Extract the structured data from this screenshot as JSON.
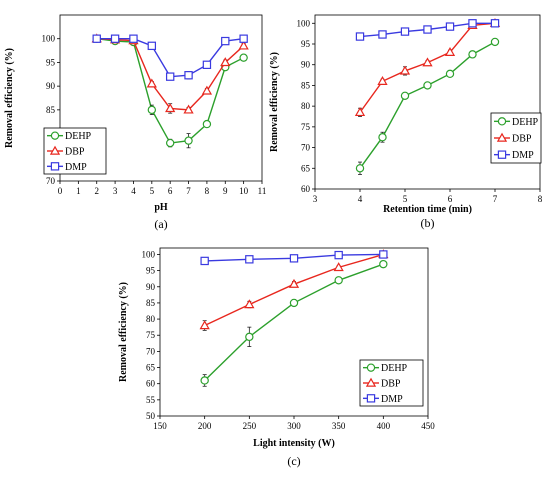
{
  "chart_data": [
    {
      "type": "line",
      "panel_label": "(a)",
      "xlabel": "pH",
      "ylabel": "Removal efficiency (%)",
      "xlim": [
        0,
        11
      ],
      "ylim": [
        70,
        105
      ],
      "xticks": [
        0,
        1,
        2,
        3,
        4,
        5,
        6,
        7,
        8,
        9,
        10,
        11
      ],
      "yticks": [
        70,
        75,
        80,
        85,
        90,
        95,
        100
      ],
      "grid": false,
      "legend_position": "bottom-left",
      "series": [
        {
          "name": "DEHP",
          "color": "#2ca02c",
          "marker": "circle",
          "x": [
            2,
            3,
            4,
            5,
            6,
            7,
            8,
            9,
            10
          ],
          "y": [
            100,
            99.5,
            99.3,
            85,
            78,
            78.5,
            82,
            94,
            96
          ],
          "err": [
            0,
            0,
            0,
            1,
            0.8,
            1.5,
            0.5,
            0.5,
            0.5
          ]
        },
        {
          "name": "DBP",
          "color": "#e8271e",
          "marker": "triangle",
          "x": [
            2,
            3,
            4,
            5,
            6,
            7,
            8,
            9,
            10
          ],
          "y": [
            100,
            99.8,
            99.6,
            90.5,
            85.3,
            85,
            89,
            95,
            98.5
          ],
          "err": [
            0,
            0,
            0,
            0.5,
            1,
            0.5,
            0.5,
            0.5,
            0.5
          ]
        },
        {
          "name": "DMP",
          "color": "#3a3ae0",
          "marker": "square",
          "x": [
            2,
            3,
            4,
            5,
            6,
            7,
            8,
            9,
            10
          ],
          "y": [
            100,
            100,
            100,
            98.5,
            92,
            92.3,
            94.5,
            99.5,
            100
          ],
          "err": [
            0,
            0,
            0,
            0.3,
            0.5,
            0.8,
            0.5,
            0.3,
            0
          ]
        }
      ]
    },
    {
      "type": "line",
      "panel_label": "(b)",
      "xlabel": "Retention time (min)",
      "ylabel": "Removal efficiency (%)",
      "xlim": [
        3,
        8
      ],
      "ylim": [
        60,
        102
      ],
      "xticks": [
        3,
        4,
        5,
        6,
        7,
        8
      ],
      "yticks": [
        60,
        65,
        70,
        75,
        80,
        85,
        90,
        95,
        100
      ],
      "grid": false,
      "legend_position": "bottom-right",
      "series": [
        {
          "name": "DEHP",
          "color": "#2ca02c",
          "marker": "circle",
          "x": [
            4,
            4.5,
            5,
            5.5,
            6,
            6.5,
            7
          ],
          "y": [
            65,
            72.5,
            82.5,
            85,
            87.8,
            92.5,
            95.5
          ],
          "err": [
            1.5,
            1.2,
            0.5,
            0.5,
            0.5,
            0.8,
            0.3
          ]
        },
        {
          "name": "DBP",
          "color": "#e8271e",
          "marker": "triangle",
          "x": [
            4,
            4.5,
            5,
            5.5,
            6,
            6.5,
            7
          ],
          "y": [
            78.5,
            86,
            88.5,
            90.5,
            93,
            99.5,
            100
          ],
          "err": [
            1,
            0.5,
            1,
            0.5,
            0.5,
            0.5,
            0.3
          ]
        },
        {
          "name": "DMP",
          "color": "#3a3ae0",
          "marker": "square",
          "x": [
            4,
            4.5,
            5,
            5.5,
            6,
            6.5,
            7
          ],
          "y": [
            96.8,
            97.3,
            98,
            98.5,
            99.2,
            100,
            100
          ],
          "err": [
            0.3,
            0.3,
            0.3,
            0.2,
            0.2,
            0.2,
            0.2
          ]
        }
      ]
    },
    {
      "type": "line",
      "panel_label": "(c)",
      "xlabel": "Light intensity (W)",
      "ylabel": "Removal efficiency (%)",
      "xlim": [
        150,
        450
      ],
      "ylim": [
        50,
        102
      ],
      "xticks": [
        150,
        200,
        250,
        300,
        350,
        400,
        450
      ],
      "yticks": [
        50,
        55,
        60,
        65,
        70,
        75,
        80,
        85,
        90,
        95,
        100
      ],
      "grid": false,
      "legend_position": "bottom-right",
      "series": [
        {
          "name": "DEHP",
          "color": "#2ca02c",
          "marker": "circle",
          "x": [
            200,
            250,
            300,
            350,
            400
          ],
          "y": [
            61,
            74.5,
            85,
            92,
            97
          ],
          "err": [
            1.8,
            3,
            1,
            0.5,
            0.3
          ]
        },
        {
          "name": "DBP",
          "color": "#e8271e",
          "marker": "triangle",
          "x": [
            200,
            250,
            300,
            350,
            400
          ],
          "y": [
            78,
            84.5,
            90.8,
            96,
            100
          ],
          "err": [
            1.5,
            1,
            0.8,
            0.5,
            0.3
          ]
        },
        {
          "name": "DMP",
          "color": "#3a3ae0",
          "marker": "square",
          "x": [
            200,
            250,
            300,
            350,
            400
          ],
          "y": [
            98,
            98.5,
            98.8,
            99.8,
            100
          ],
          "err": [
            0.3,
            0.3,
            0.3,
            0.2,
            0.2
          ]
        }
      ]
    }
  ]
}
